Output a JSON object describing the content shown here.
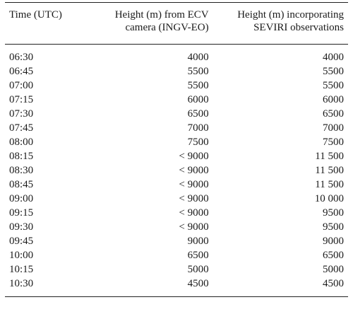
{
  "table": {
    "headers": [
      [
        "Time (UTC)"
      ],
      [
        "Height (m) from ECV",
        "camera (INGV-EO)"
      ],
      [
        "Height (m) incorporating",
        "SEVIRI observations"
      ]
    ],
    "rows": [
      [
        "06:30",
        "4000",
        "4000"
      ],
      [
        "06:45",
        "5500",
        "5500"
      ],
      [
        "07:00",
        "5500",
        "5500"
      ],
      [
        "07:15",
        "6000",
        "6000"
      ],
      [
        "07:30",
        "6500",
        "6500"
      ],
      [
        "07:45",
        "7000",
        "7000"
      ],
      [
        "08:00",
        "7500",
        "7500"
      ],
      [
        "08:15",
        "< 9000",
        "11 500"
      ],
      [
        "08:30",
        "< 9000",
        "11 500"
      ],
      [
        "08:45",
        "< 9000",
        "11 500"
      ],
      [
        "09:00",
        "< 9000",
        "10 000"
      ],
      [
        "09:15",
        "< 9000",
        "9500"
      ],
      [
        "09:30",
        "< 9000",
        "9500"
      ],
      [
        "09:45",
        "9000",
        "9000"
      ],
      [
        "10:00",
        "6500",
        "6500"
      ],
      [
        "10:15",
        "5000",
        "5000"
      ],
      [
        "10:30",
        "4500",
        "4500"
      ]
    ]
  }
}
